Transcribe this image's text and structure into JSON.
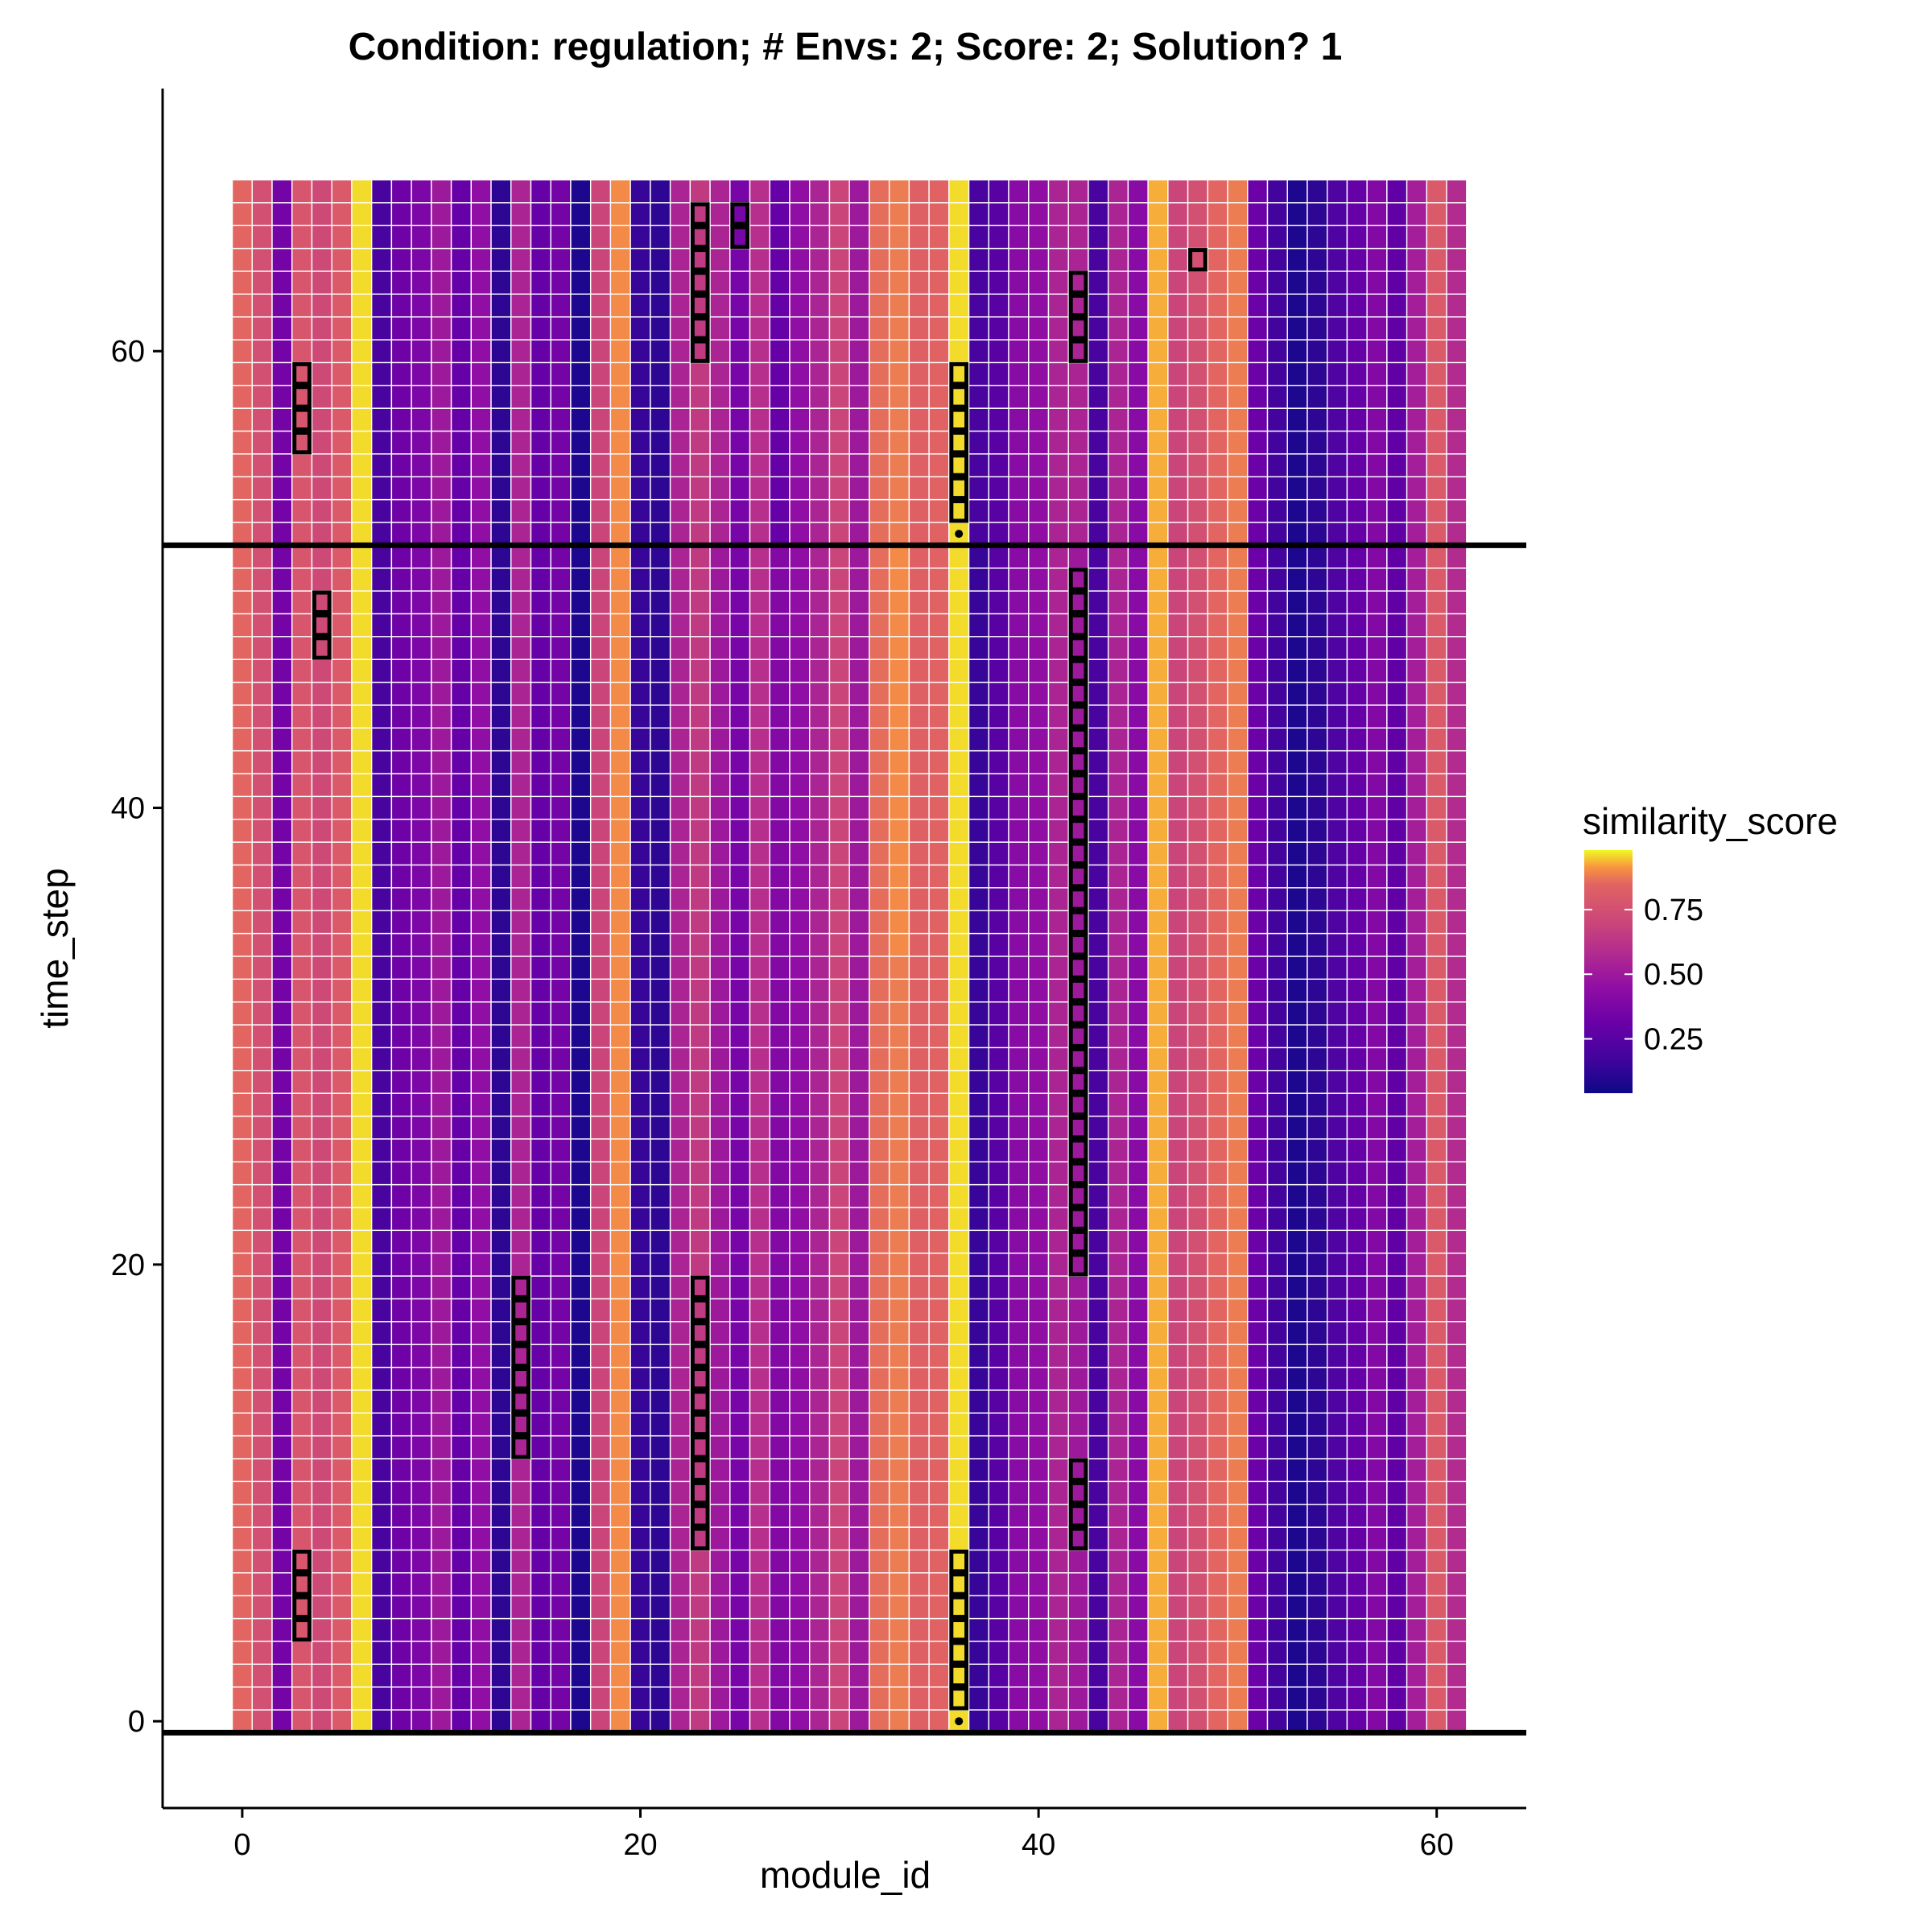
{
  "chart_data": {
    "type": "heatmap",
    "title": "Condition: regulation; # Envs: 2; Score: 2; Solution? 1",
    "xlabel": "module_id",
    "ylabel": "time_step",
    "xlim": [
      -4,
      64.5
    ],
    "ylim": [
      -3.8,
      71.5
    ],
    "x_ticks": [
      0,
      20,
      40,
      60
    ],
    "y_ticks": [
      0,
      20,
      40,
      60
    ],
    "x_range": [
      0,
      61
    ],
    "y_range": [
      0,
      67
    ],
    "grid": false,
    "legend": {
      "title": "similarity_score",
      "placement": "right",
      "range": [
        0.04,
        0.98
      ],
      "ticks": [
        0.25,
        0.5,
        0.75
      ],
      "tick_labels": [
        "0.25",
        "0.50",
        "0.75"
      ],
      "palette": "plasma"
    },
    "env_change_lines": [
      -0.5,
      51.5
    ],
    "column_values": [
      0.85,
      0.75,
      0.35,
      0.78,
      0.72,
      0.8,
      0.96,
      0.2,
      0.33,
      0.38,
      0.5,
      0.3,
      0.45,
      0.12,
      0.55,
      0.3,
      0.35,
      0.08,
      0.7,
      0.9,
      0.15,
      0.12,
      0.55,
      0.65,
      0.5,
      0.36,
      0.6,
      0.4,
      0.45,
      0.55,
      0.7,
      0.5,
      0.86,
      0.88,
      0.83,
      0.84,
      0.96,
      0.15,
      0.25,
      0.42,
      0.45,
      0.55,
      0.5,
      0.2,
      0.55,
      0.42,
      0.93,
      0.7,
      0.75,
      0.85,
      0.88,
      0.32,
      0.18,
      0.08,
      0.12,
      0.22,
      0.3,
      0.4,
      0.28,
      0.52,
      0.8,
      0.58
    ],
    "overrides": [
      {
        "x": 23,
        "y_start": 52,
        "y_end": 67,
        "value": 0.65
      },
      {
        "x": 24,
        "y_start": 52,
        "y_end": 67,
        "value": 0.55
      },
      {
        "x": 27,
        "y_start": 52,
        "y_end": 67,
        "value": 0.3
      },
      {
        "x": 42,
        "y_start": 52,
        "y_end": 67,
        "value": 0.55
      },
      {
        "x": 37,
        "y_start": 52,
        "y_end": 67,
        "value": 0.2
      },
      {
        "x": 33,
        "y_start": 34,
        "y_end": 51,
        "value": 0.9
      }
    ],
    "highlights": [
      {
        "x": 3,
        "y_start": 56,
        "y_end": 59
      },
      {
        "x": 23,
        "y_start": 60,
        "y_end": 66
      },
      {
        "x": 25,
        "y_start": 65,
        "y_end": 66
      },
      {
        "x": 42,
        "y_start": 60,
        "y_end": 63
      },
      {
        "x": 48,
        "y_start": 64,
        "y_end": 64
      },
      {
        "x": 36,
        "y_start": 53,
        "y_end": 59
      },
      {
        "x": 4,
        "y_start": 47,
        "y_end": 49
      },
      {
        "x": 42,
        "y_start": 20,
        "y_end": 50
      },
      {
        "x": 14,
        "y_start": 12,
        "y_end": 19
      },
      {
        "x": 23,
        "y_start": 8,
        "y_end": 19
      },
      {
        "x": 42,
        "y_start": 8,
        "y_end": 11
      },
      {
        "x": 3,
        "y_start": 4,
        "y_end": 7
      },
      {
        "x": 36,
        "y_start": 1,
        "y_end": 7
      }
    ],
    "marked_points": [
      {
        "x": 36,
        "y": 52
      },
      {
        "x": 36,
        "y": 0
      }
    ]
  }
}
